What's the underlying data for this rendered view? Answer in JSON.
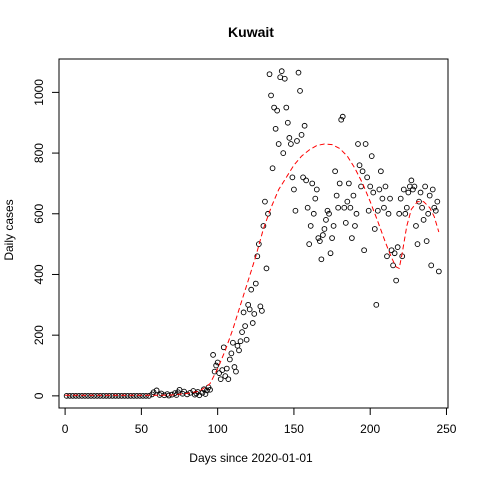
{
  "chart_data": {
    "type": "scatter",
    "title": "Kuwait",
    "xlabel": "Days since 2020-01-01",
    "ylabel": "Daily cases",
    "xlim": [
      -4,
      251
    ],
    "ylim": [
      -40,
      1110
    ],
    "x_ticks": [
      0,
      50,
      100,
      150,
      200,
      250
    ],
    "y_ticks": [
      0,
      200,
      400,
      600,
      800,
      1000
    ],
    "grid": false,
    "legend": "none",
    "point_color": "#000000",
    "fit_color": "#ff0000",
    "series": [
      {
        "values": [
          [
            1,
            0
          ],
          [
            3,
            0
          ],
          [
            5,
            0
          ],
          [
            7,
            0
          ],
          [
            9,
            0
          ],
          [
            11,
            0
          ],
          [
            13,
            0
          ],
          [
            15,
            0
          ],
          [
            17,
            0
          ],
          [
            19,
            0
          ],
          [
            21,
            0
          ],
          [
            23,
            0
          ],
          [
            25,
            0
          ],
          [
            27,
            0
          ],
          [
            29,
            0
          ],
          [
            31,
            0
          ],
          [
            33,
            0
          ],
          [
            35,
            0
          ],
          [
            37,
            0
          ],
          [
            39,
            0
          ],
          [
            41,
            0
          ],
          [
            43,
            0
          ],
          [
            45,
            0
          ],
          [
            47,
            0
          ],
          [
            49,
            0
          ],
          [
            51,
            0
          ],
          [
            53,
            0
          ],
          [
            55,
            0
          ],
          [
            57,
            5
          ],
          [
            58,
            12
          ],
          [
            60,
            18
          ],
          [
            62,
            3
          ],
          [
            63,
            8
          ],
          [
            65,
            2
          ],
          [
            67,
            6
          ],
          [
            68,
            1
          ],
          [
            70,
            4
          ],
          [
            72,
            9
          ],
          [
            73,
            3
          ],
          [
            74,
            12
          ],
          [
            75,
            20
          ],
          [
            77,
            7
          ],
          [
            78,
            14
          ],
          [
            80,
            5
          ],
          [
            82,
            10
          ],
          [
            84,
            16
          ],
          [
            85,
            4
          ],
          [
            86,
            8
          ],
          [
            87,
            13
          ],
          [
            88,
            2
          ],
          [
            90,
            10
          ],
          [
            91,
            22
          ],
          [
            92,
            6
          ],
          [
            93,
            18
          ],
          [
            94,
            28
          ],
          [
            95,
            20
          ],
          [
            97,
            135
          ],
          [
            98,
            80
          ],
          [
            99,
            100
          ],
          [
            100,
            110
          ],
          [
            101,
            75
          ],
          [
            102,
            55
          ],
          [
            103,
            85
          ],
          [
            104,
            160
          ],
          [
            105,
            65
          ],
          [
            106,
            90
          ],
          [
            107,
            55
          ],
          [
            108,
            120
          ],
          [
            109,
            140
          ],
          [
            110,
            175
          ],
          [
            111,
            95
          ],
          [
            112,
            80
          ],
          [
            113,
            165
          ],
          [
            114,
            150
          ],
          [
            115,
            180
          ],
          [
            116,
            210
          ],
          [
            117,
            275
          ],
          [
            118,
            230
          ],
          [
            119,
            185
          ],
          [
            120,
            300
          ],
          [
            121,
            285
          ],
          [
            122,
            350
          ],
          [
            123,
            240
          ],
          [
            124,
            270
          ],
          [
            125,
            370
          ],
          [
            126,
            460
          ],
          [
            127,
            500
          ],
          [
            128,
            295
          ],
          [
            129,
            280
          ],
          [
            130,
            560
          ],
          [
            131,
            640
          ],
          [
            132,
            420
          ],
          [
            133,
            600
          ],
          [
            134,
            1060
          ],
          [
            135,
            990
          ],
          [
            136,
            750
          ],
          [
            137,
            950
          ],
          [
            138,
            880
          ],
          [
            139,
            940
          ],
          [
            140,
            830
          ],
          [
            141,
            1050
          ],
          [
            142,
            1070
          ],
          [
            143,
            800
          ],
          [
            144,
            1045
          ],
          [
            145,
            950
          ],
          [
            146,
            900
          ],
          [
            147,
            850
          ],
          [
            148,
            830
          ],
          [
            149,
            720
          ],
          [
            150,
            680
          ],
          [
            151,
            610
          ],
          [
            152,
            840
          ],
          [
            153,
            1065
          ],
          [
            154,
            1005
          ],
          [
            155,
            860
          ],
          [
            156,
            720
          ],
          [
            157,
            890
          ],
          [
            158,
            710
          ],
          [
            159,
            620
          ],
          [
            160,
            500
          ],
          [
            161,
            560
          ],
          [
            162,
            700
          ],
          [
            163,
            600
          ],
          [
            164,
            650
          ],
          [
            165,
            680
          ],
          [
            166,
            520
          ],
          [
            167,
            510
          ],
          [
            168,
            450
          ],
          [
            169,
            530
          ],
          [
            170,
            550
          ],
          [
            171,
            580
          ],
          [
            172,
            610
          ],
          [
            173,
            600
          ],
          [
            174,
            470
          ],
          [
            175,
            520
          ],
          [
            176,
            560
          ],
          [
            177,
            740
          ],
          [
            178,
            660
          ],
          [
            179,
            620
          ],
          [
            180,
            700
          ],
          [
            181,
            910
          ],
          [
            182,
            920
          ],
          [
            183,
            620
          ],
          [
            184,
            570
          ],
          [
            185,
            640
          ],
          [
            186,
            700
          ],
          [
            187,
            620
          ],
          [
            188,
            520
          ],
          [
            189,
            660
          ],
          [
            190,
            560
          ],
          [
            191,
            600
          ],
          [
            192,
            830
          ],
          [
            193,
            760
          ],
          [
            194,
            690
          ],
          [
            195,
            740
          ],
          [
            196,
            480
          ],
          [
            197,
            830
          ],
          [
            198,
            720
          ],
          [
            199,
            610
          ],
          [
            200,
            690
          ],
          [
            201,
            790
          ],
          [
            202,
            670
          ],
          [
            203,
            550
          ],
          [
            204,
            300
          ],
          [
            205,
            610
          ],
          [
            206,
            680
          ],
          [
            207,
            740
          ],
          [
            208,
            650
          ],
          [
            209,
            620
          ],
          [
            210,
            690
          ],
          [
            211,
            460
          ],
          [
            212,
            600
          ],
          [
            213,
            650
          ],
          [
            214,
            480
          ],
          [
            215,
            430
          ],
          [
            216,
            470
          ],
          [
            217,
            380
          ],
          [
            218,
            490
          ],
          [
            219,
            600
          ],
          [
            220,
            650
          ],
          [
            221,
            460
          ],
          [
            222,
            680
          ],
          [
            223,
            600
          ],
          [
            224,
            620
          ],
          [
            225,
            670
          ],
          [
            226,
            690
          ],
          [
            227,
            710
          ],
          [
            228,
            680
          ],
          [
            229,
            690
          ],
          [
            230,
            560
          ],
          [
            231,
            500
          ],
          [
            232,
            640
          ],
          [
            233,
            670
          ],
          [
            234,
            620
          ],
          [
            235,
            580
          ],
          [
            236,
            690
          ],
          [
            237,
            510
          ],
          [
            238,
            600
          ],
          [
            239,
            660
          ],
          [
            240,
            430
          ],
          [
            241,
            680
          ],
          [
            242,
            620
          ],
          [
            243,
            610
          ],
          [
            244,
            640
          ],
          [
            245,
            410
          ]
        ]
      },
      {
        "values": [
          [
            0,
            2
          ],
          [
            20,
            2
          ],
          [
            40,
            2
          ],
          [
            60,
            2
          ],
          [
            70,
            3
          ],
          [
            80,
            8
          ],
          [
            88,
            15
          ],
          [
            95,
            40
          ],
          [
            100,
            90
          ],
          [
            105,
            150
          ],
          [
            110,
            220
          ],
          [
            115,
            300
          ],
          [
            120,
            380
          ],
          [
            125,
            460
          ],
          [
            130,
            550
          ],
          [
            135,
            620
          ],
          [
            140,
            680
          ],
          [
            145,
            720
          ],
          [
            150,
            760
          ],
          [
            155,
            790
          ],
          [
            160,
            810
          ],
          [
            165,
            825
          ],
          [
            170,
            830
          ],
          [
            175,
            828
          ],
          [
            180,
            815
          ],
          [
            185,
            790
          ],
          [
            190,
            750
          ],
          [
            195,
            700
          ],
          [
            200,
            640
          ],
          [
            205,
            575
          ],
          [
            210,
            505
          ],
          [
            214,
            455
          ],
          [
            217,
            425
          ],
          [
            219,
            420
          ],
          [
            221,
            470
          ],
          [
            224,
            560
          ],
          [
            227,
            615
          ],
          [
            231,
            640
          ],
          [
            235,
            640
          ],
          [
            239,
            620
          ],
          [
            242,
            590
          ],
          [
            245,
            540
          ]
        ]
      }
    ]
  }
}
